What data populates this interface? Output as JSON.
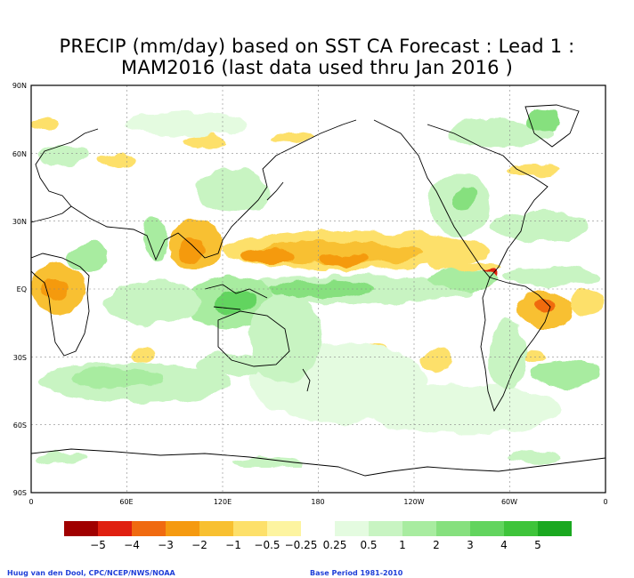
{
  "title": {
    "line1": "PRECIP (mm/day) based on SST CA Forecast : Lead 1 :",
    "line2": "MAM2016 (last data used thru Jan 2016 )"
  },
  "axes": {
    "lat_labels": [
      "90N",
      "60N",
      "30N",
      "EQ",
      "30S",
      "60S",
      "90S"
    ],
    "lon_labels": [
      "0",
      "60E",
      "120E",
      "180",
      "120W",
      "60W",
      "0"
    ]
  },
  "legend": {
    "colors": [
      "#a00000",
      "#e02010",
      "#f06a10",
      "#f59a10",
      "#f8c030",
      "#fde06a",
      "#fdf4a0",
      "#ffffff",
      "#e4fbe0",
      "#c8f4c2",
      "#a8eca0",
      "#86e07e",
      "#62d45e",
      "#3ec43a",
      "#1aa820"
    ],
    "labels": [
      "−5",
      "−4",
      "−3",
      "−2",
      "−1",
      "−0.5",
      "−0.25",
      "0.25",
      "0.5",
      "1",
      "2",
      "3",
      "4",
      "5"
    ]
  },
  "credits": {
    "left": "Huug van den Dool, CPC/NCEP/NWS/NOAA",
    "right": "Base Period 1981-2010"
  }
}
